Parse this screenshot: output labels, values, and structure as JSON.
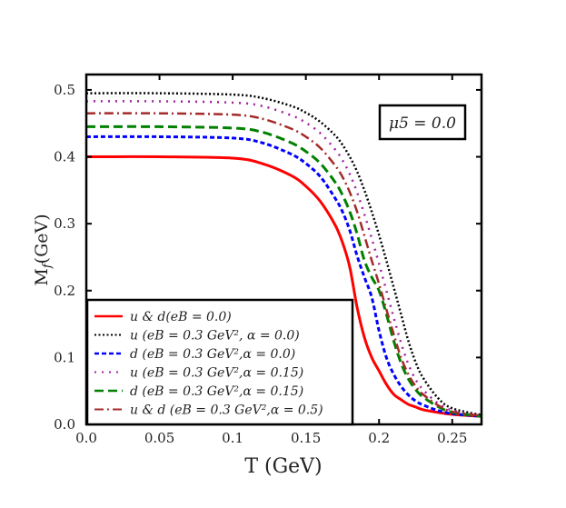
{
  "chart_data": {
    "type": "line",
    "xlabel": "T (GeV)",
    "ylabel": "M_f(GeV)",
    "ylabel_main": "M",
    "ylabel_sub": "f",
    "ylabel_unit": "(GeV)",
    "xlim": [
      0,
      0.27
    ],
    "ylim": [
      0,
      0.523
    ],
    "xticks": [
      0.0,
      0.05,
      0.1,
      0.15,
      0.2,
      0.25
    ],
    "xtick_labels": [
      "0.0",
      "0.05",
      "0.1",
      "0.15",
      "0.2",
      "0.25"
    ],
    "yticks": [
      0.0,
      0.1,
      0.2,
      0.3,
      0.4,
      0.5
    ],
    "ytick_labels": [
      "0.0",
      "0.1",
      "0.2",
      "0.3",
      "0.4",
      "0.5"
    ],
    "grid": false,
    "legend_position": "bottom-left",
    "annotation": "μ5 = 0.0",
    "x": [
      0,
      0.05,
      0.1,
      0.12,
      0.14,
      0.15,
      0.16,
      0.17,
      0.175,
      0.18,
      0.185,
      0.19,
      0.195,
      0.2,
      0.205,
      0.21,
      0.215,
      0.22,
      0.225,
      0.23,
      0.24,
      0.25,
      0.27
    ],
    "series": [
      {
        "name": "u & d(eB = 0.0)",
        "color": "#ff0000",
        "dash": "solid",
        "values": [
          0.4,
          0.4,
          0.398,
          0.39,
          0.372,
          0.356,
          0.333,
          0.298,
          0.272,
          0.235,
          0.175,
          0.13,
          0.1,
          0.08,
          0.06,
          0.045,
          0.037,
          0.03,
          0.026,
          0.022,
          0.018,
          0.015,
          0.012
        ]
      },
      {
        "name": "u (eB = 0.3 GeV², α = 0.0)",
        "color": "#000000",
        "dash": "dotted",
        "values": [
          0.495,
          0.495,
          0.493,
          0.488,
          0.476,
          0.466,
          0.452,
          0.432,
          0.418,
          0.4,
          0.378,
          0.35,
          0.318,
          0.283,
          0.245,
          0.205,
          0.165,
          0.125,
          0.093,
          0.07,
          0.04,
          0.024,
          0.014
        ]
      },
      {
        "name": "d (eB = 0.3 GeV²,α = 0.0)",
        "color": "#0000ff",
        "dash": "short-dash",
        "values": [
          0.43,
          0.43,
          0.428,
          0.421,
          0.404,
          0.39,
          0.37,
          0.338,
          0.318,
          0.29,
          0.252,
          0.22,
          0.19,
          0.14,
          0.1,
          0.075,
          0.057,
          0.044,
          0.035,
          0.029,
          0.021,
          0.016,
          0.012
        ]
      },
      {
        "name": "u (eB = 0.3 GeV²,α = 0.15)",
        "color": "#a020a0",
        "dash": "sparse-dot",
        "values": [
          0.483,
          0.483,
          0.481,
          0.476,
          0.462,
          0.451,
          0.435,
          0.411,
          0.395,
          0.374,
          0.347,
          0.314,
          0.278,
          0.24,
          0.2,
          0.16,
          0.122,
          0.09,
          0.067,
          0.052,
          0.032,
          0.021,
          0.013
        ]
      },
      {
        "name": "d (eB = 0.3 GeV²,α = 0.15)",
        "color": "#008000",
        "dash": "long-dash",
        "values": [
          0.445,
          0.445,
          0.443,
          0.437,
          0.421,
          0.408,
          0.39,
          0.362,
          0.343,
          0.318,
          0.285,
          0.245,
          0.22,
          0.2,
          0.165,
          0.125,
          0.092,
          0.068,
          0.052,
          0.041,
          0.027,
          0.018,
          0.012
        ]
      },
      {
        "name": "u & d (eB = 0.3 GeV²,α = 0.5)",
        "color": "#a52a2a",
        "dash": "dash-dot",
        "values": [
          0.465,
          0.465,
          0.463,
          0.457,
          0.442,
          0.43,
          0.413,
          0.387,
          0.37,
          0.347,
          0.318,
          0.282,
          0.245,
          0.21,
          0.172,
          0.135,
          0.1,
          0.075,
          0.057,
          0.045,
          0.029,
          0.019,
          0.013
        ]
      }
    ]
  }
}
